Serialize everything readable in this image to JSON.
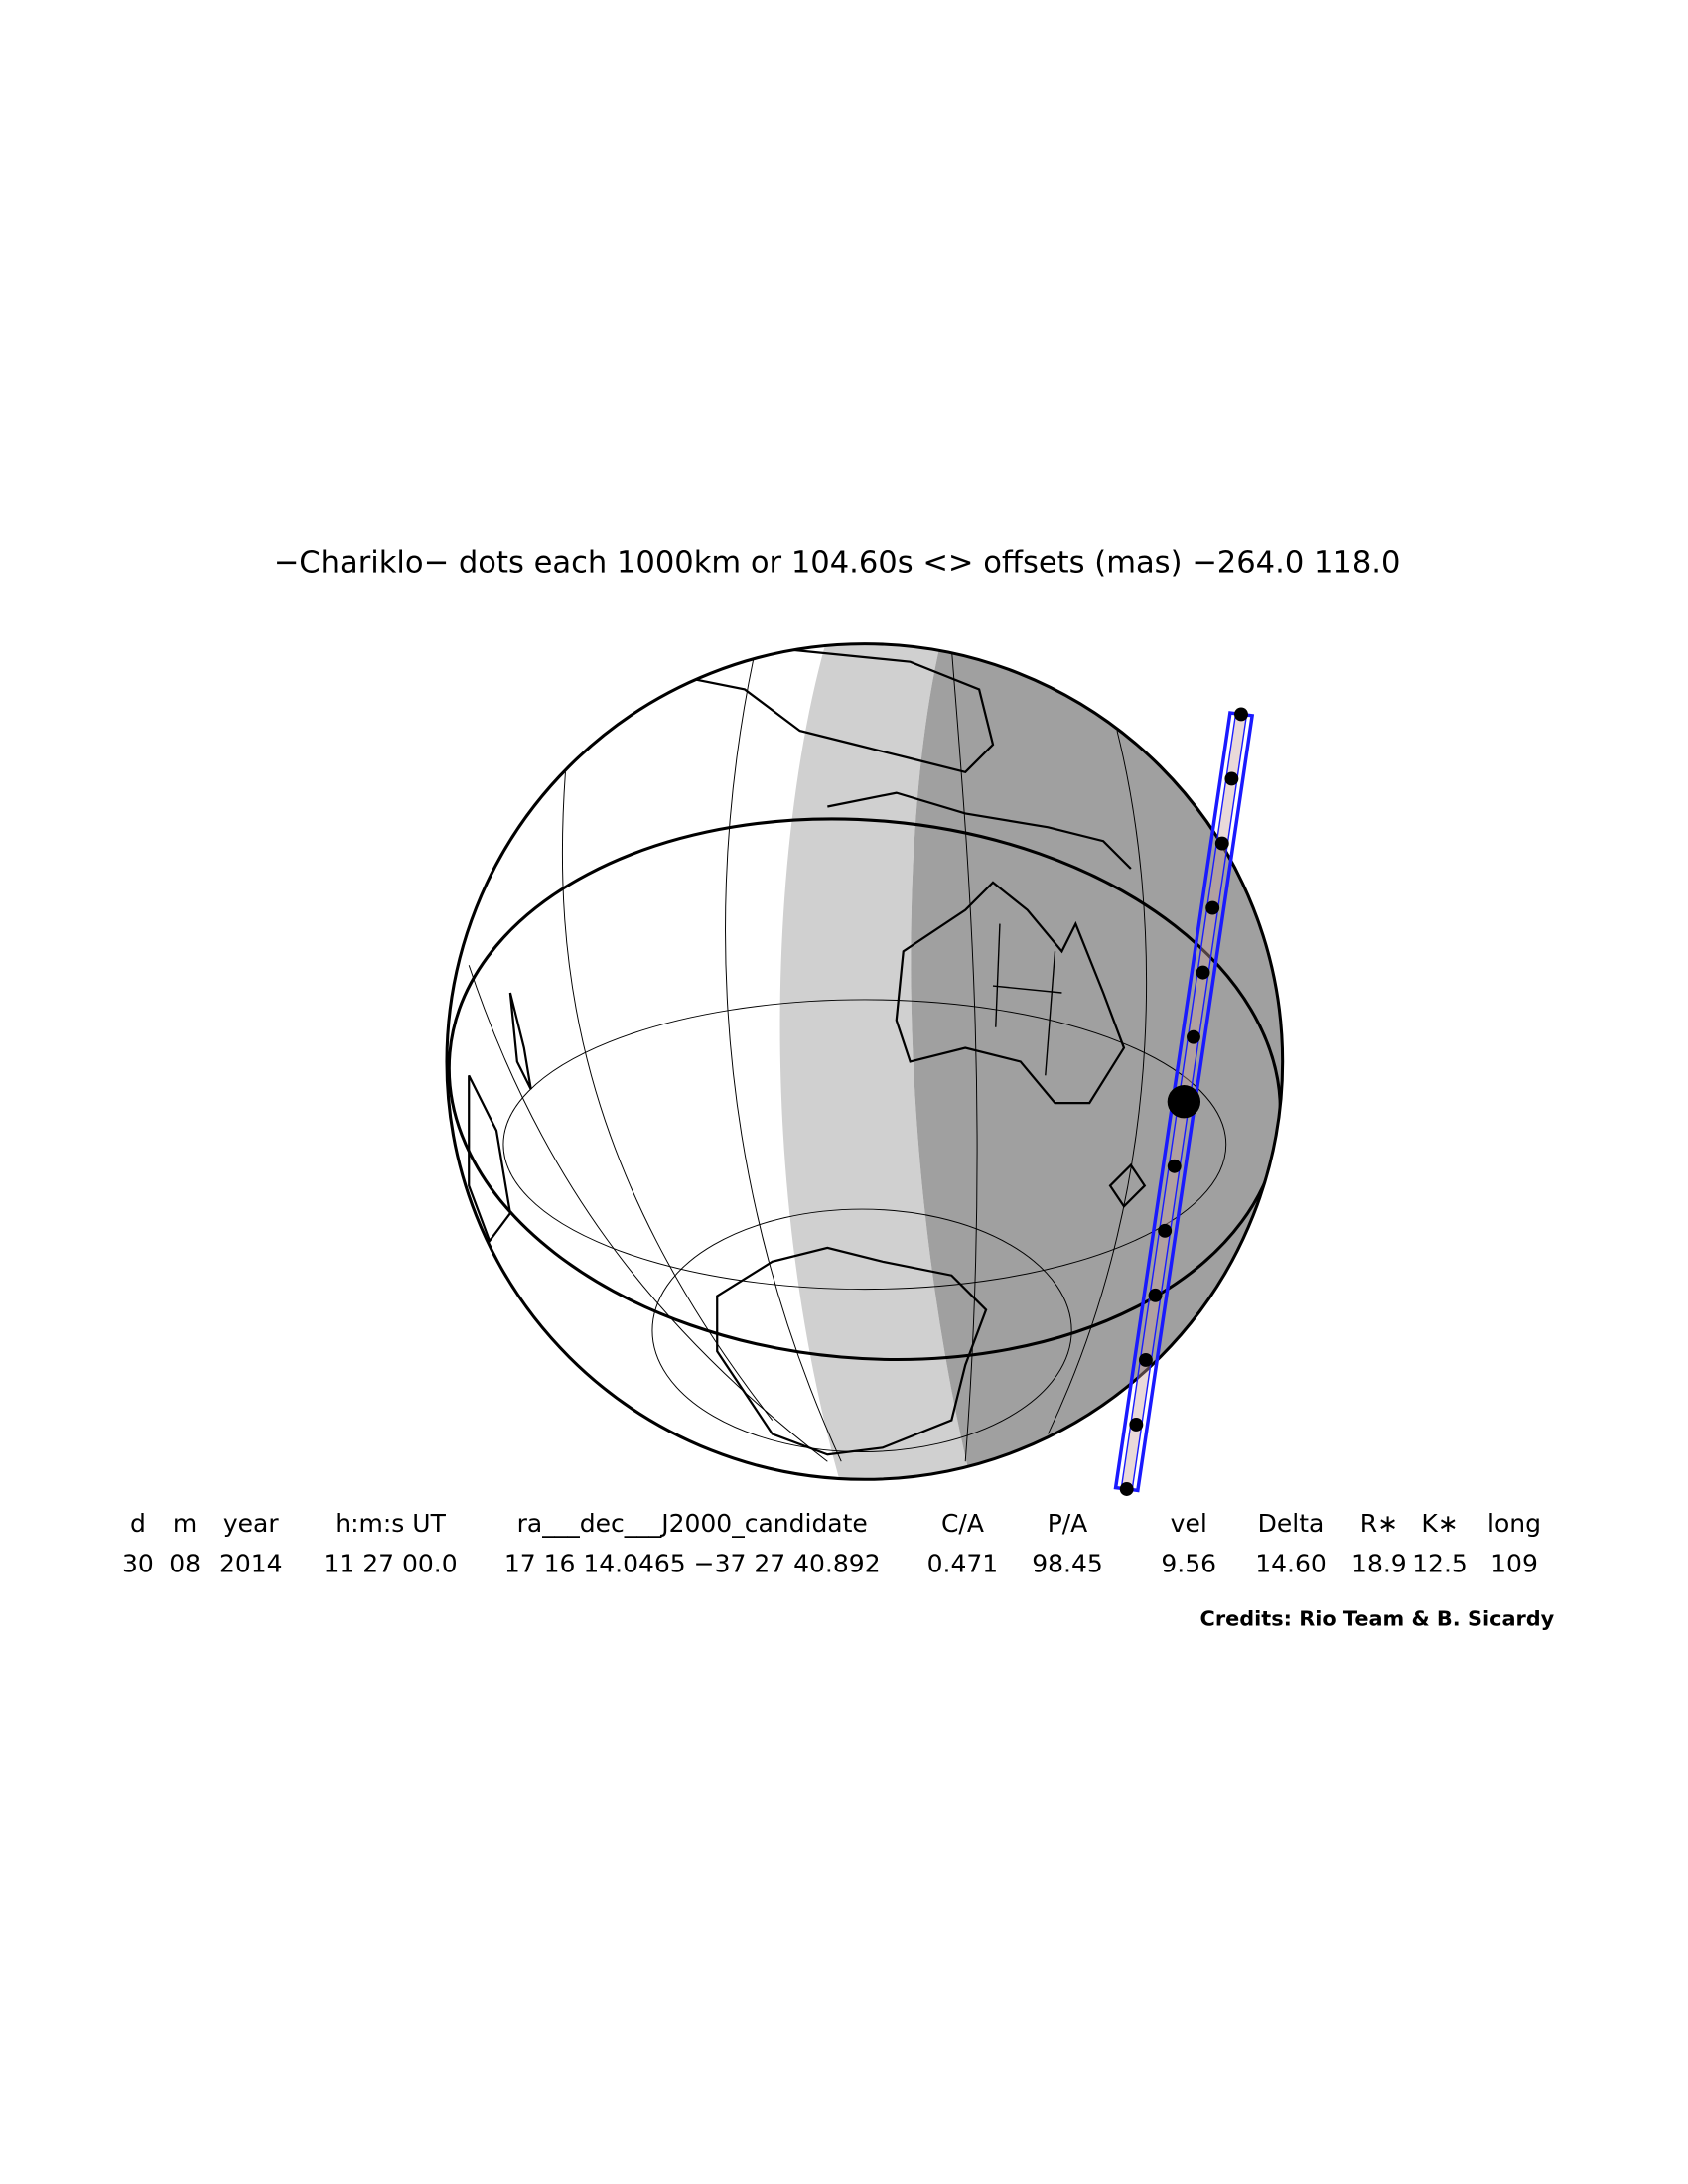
{
  "title": "−Chariklo− dots each 1000km or 104.60s <> offsets (mas) −264.0   118.0",
  "table": {
    "headers": [
      "d",
      "m",
      "year",
      "h:m:s UT",
      "ra___dec___J2000_candidate",
      "C/A",
      "P/A",
      "vel",
      "Delta",
      "R∗",
      "K∗",
      "long"
    ],
    "rows": [
      [
        "30",
        "08",
        "2014",
        "11 27 00.0",
        "17 16 14.0465 −37 27 40.892",
        "0.471",
        "98.45",
        "9.56",
        "14.60",
        "18.9",
        "12.5",
        "109"
      ]
    ]
  },
  "credits": "Credits: Rio Team & B. Sicardy"
}
